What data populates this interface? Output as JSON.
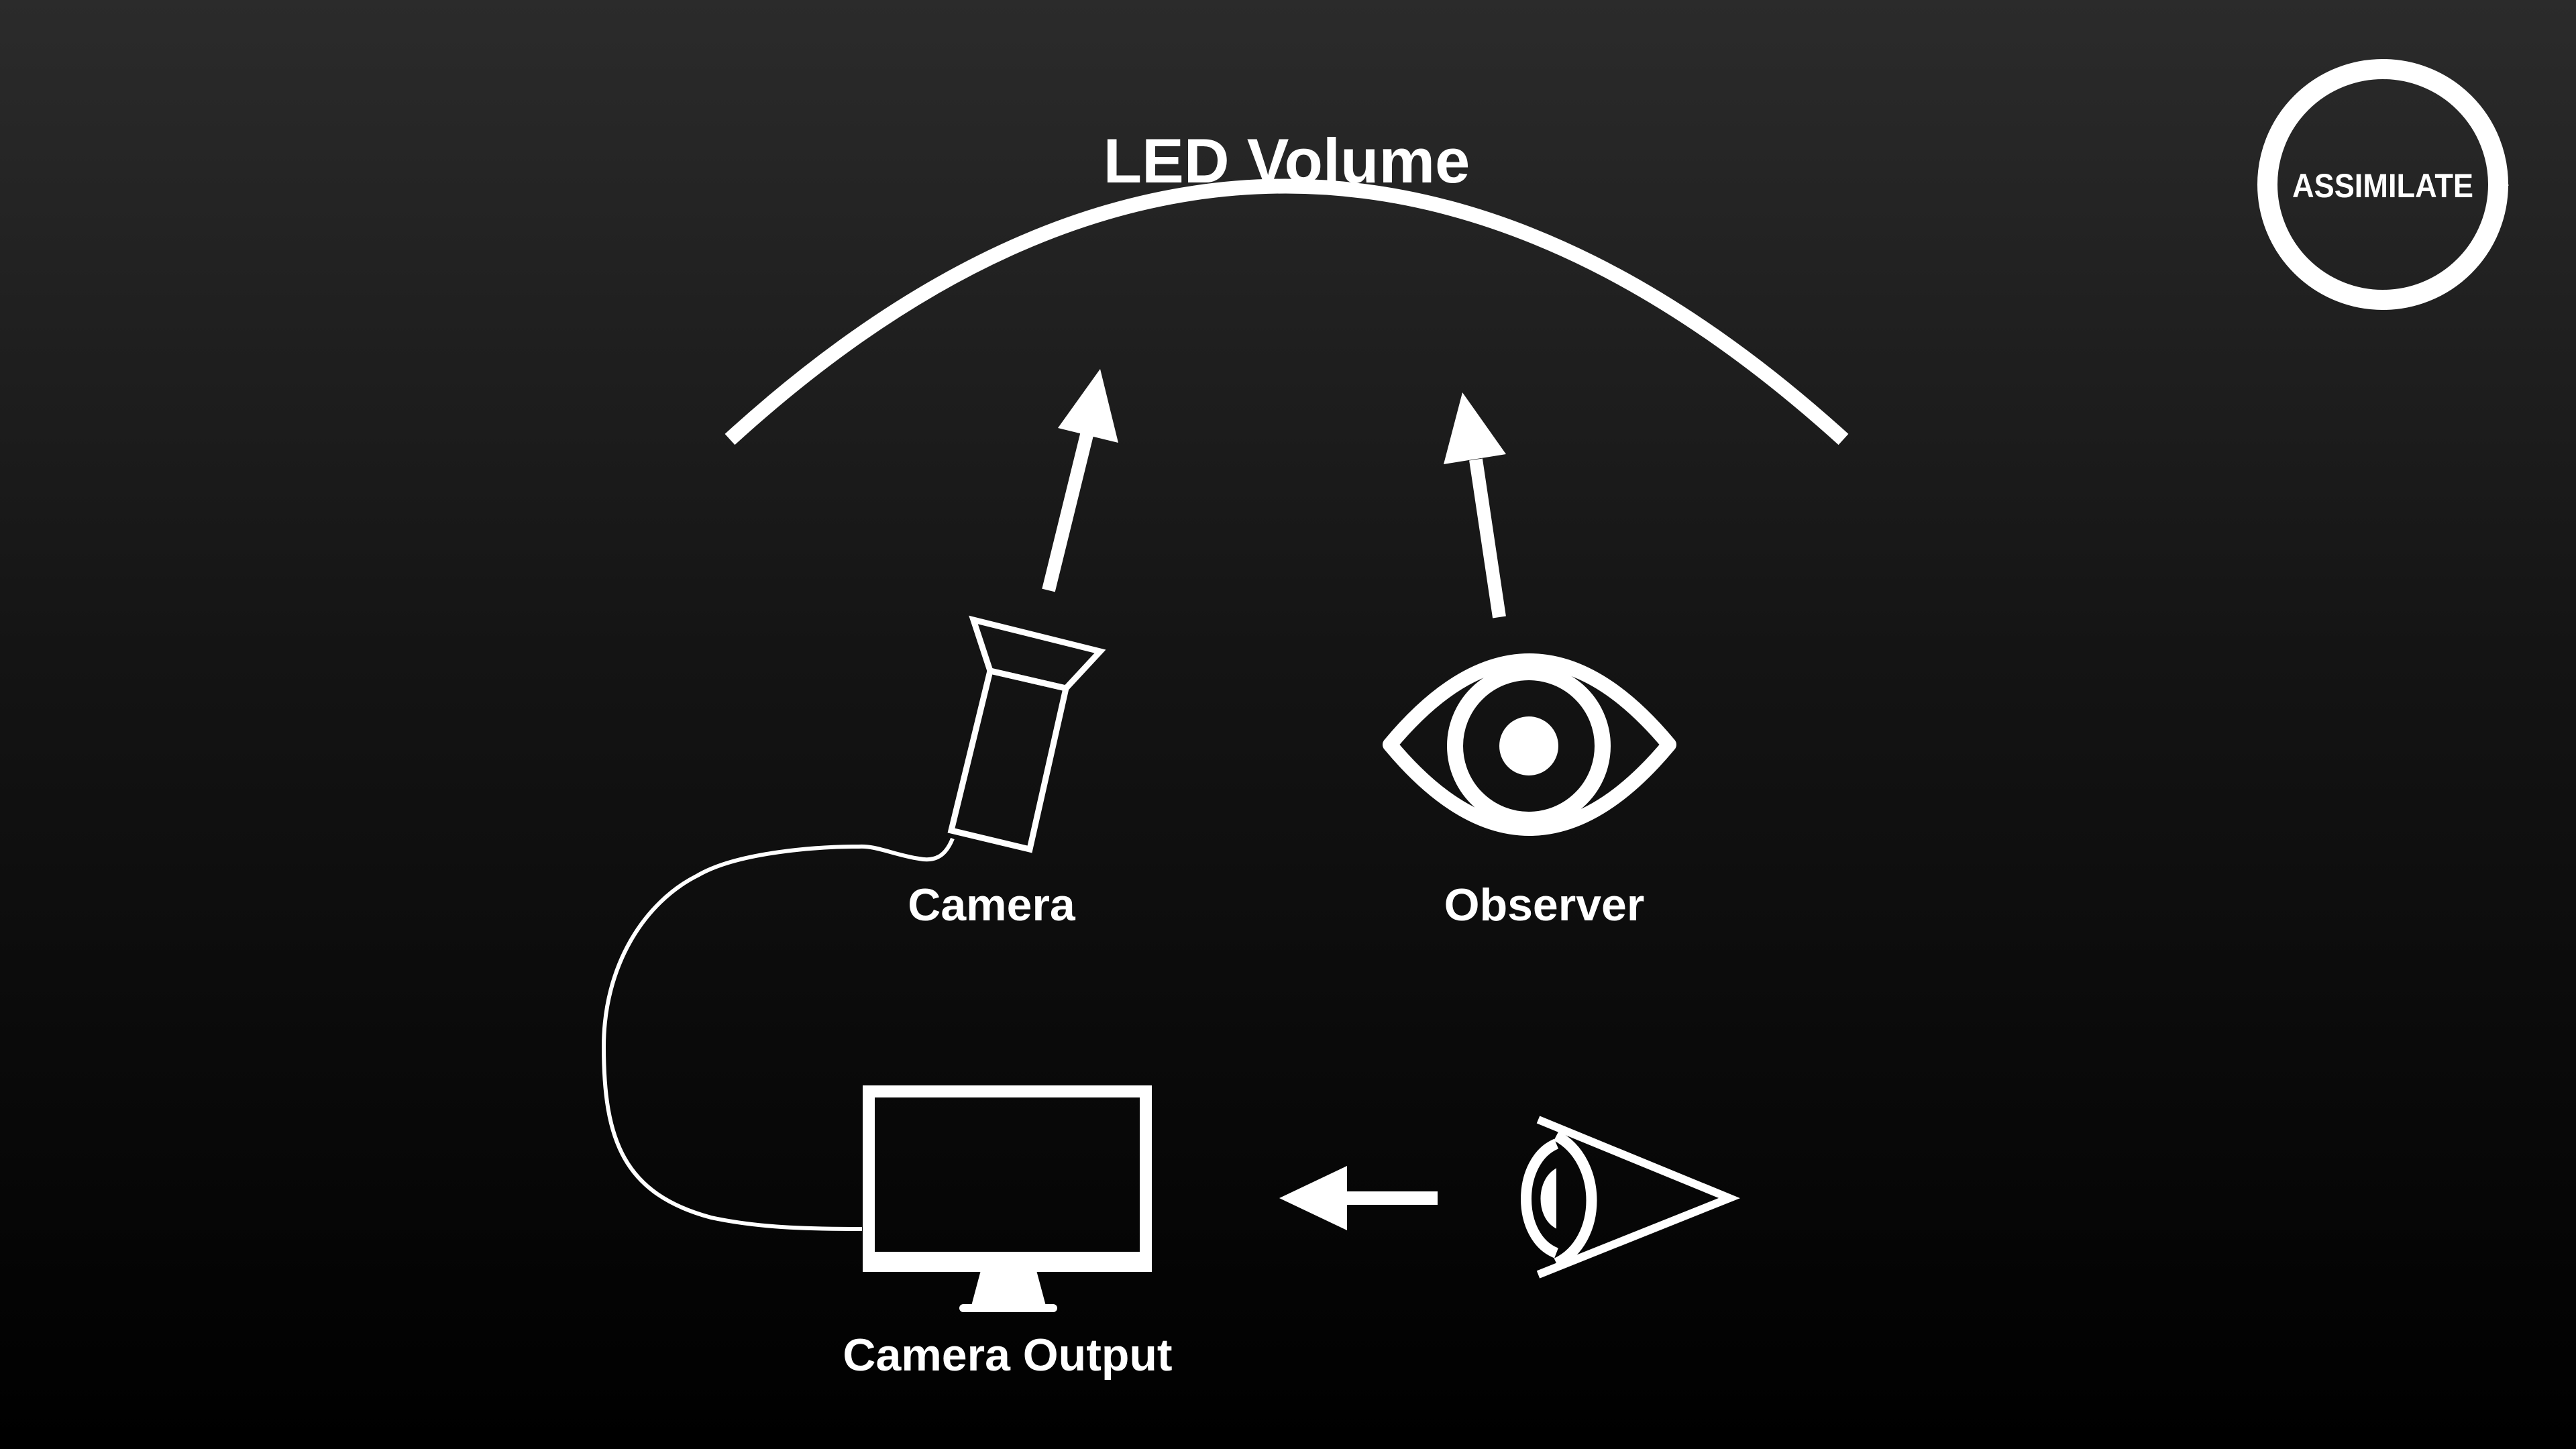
{
  "diagram": {
    "title": "LED Volume",
    "labels": {
      "camera": "Camera",
      "observer": "Observer",
      "camera_output": "Camera Output"
    }
  },
  "logo": {
    "text": "ASSIMILATE"
  },
  "colors": {
    "foreground": "#ffffff",
    "background_top": "#2b2b2b",
    "background_bottom": "#000000"
  },
  "icons": {
    "camera": "camera-icon",
    "observer": "eye-icon",
    "monitor": "monitor-icon",
    "side_eye": "eye-side-icon"
  }
}
